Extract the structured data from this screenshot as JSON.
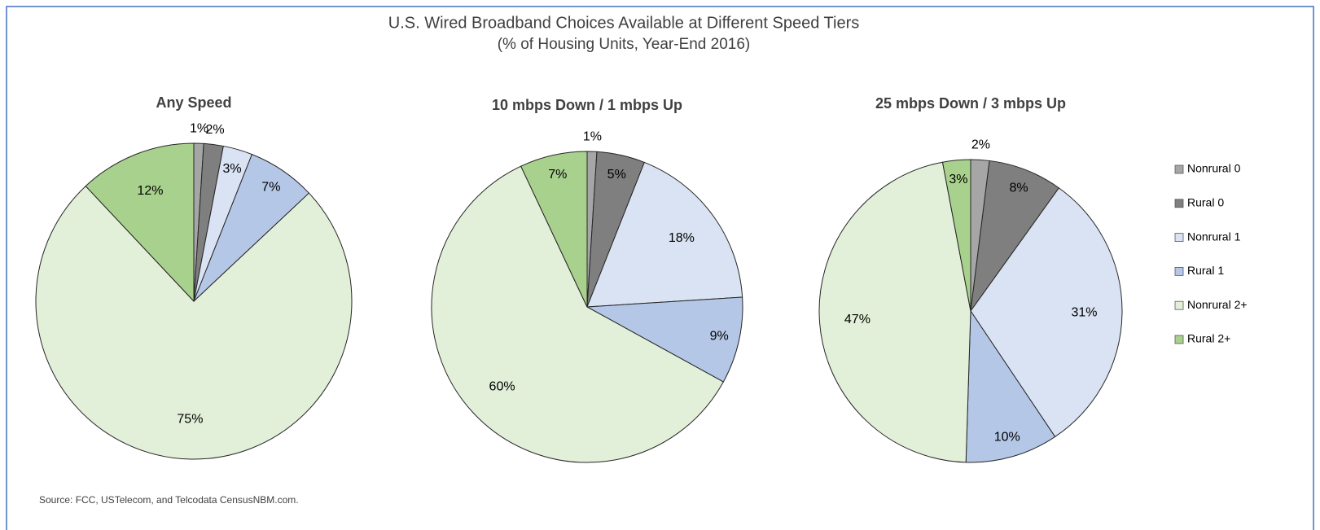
{
  "header": {
    "title": "U.S. Wired Broadband Choices Available at Different Speed Tiers",
    "subtitle": "(% of Housing Units, Year-End 2016)"
  },
  "source": "Source: FCC, USTelecom, and Telcodata CensusNBM.com.",
  "chart_data": [
    {
      "type": "pie",
      "title": "Any Speed",
      "categories": [
        "Nonrural 0",
        "Rural 0",
        "Nonrural 1",
        "Rural 1",
        "Nonrural 2+",
        "Rural 2+"
      ],
      "values": [
        1,
        2,
        3,
        7,
        75,
        12
      ],
      "value_labels": [
        "1%",
        "2%",
        "3%",
        "7%",
        "75%",
        "12%"
      ],
      "colors": [
        "#a6a6a6",
        "#7f7f7f",
        "#dae3f3",
        "#b4c7e7",
        "#e2f0d9",
        "#a9d18e"
      ]
    },
    {
      "type": "pie",
      "title": "10 mbps Down / 1 mbps Up",
      "categories": [
        "Nonrural 0",
        "Rural 0",
        "Nonrural 1",
        "Rural 1",
        "Nonrural 2+",
        "Rural 2+"
      ],
      "values": [
        1,
        5,
        18,
        9,
        60,
        7
      ],
      "value_labels": [
        "1%",
        "5%",
        "18%",
        "9%",
        "60%",
        "7%"
      ],
      "colors": [
        "#a6a6a6",
        "#7f7f7f",
        "#dae3f3",
        "#b4c7e7",
        "#e2f0d9",
        "#a9d18e"
      ]
    },
    {
      "type": "pie",
      "title": "25 mbps Down / 3 mbps Up",
      "categories": [
        "Nonrural 0",
        "Rural 0",
        "Nonrural 1",
        "Rural 1",
        "Nonrural 2+",
        "Rural 2+"
      ],
      "values": [
        2,
        8,
        31,
        10,
        47,
        3
      ],
      "value_labels": [
        "2%",
        "8%",
        "31%",
        "10%",
        "47%",
        "3%"
      ],
      "colors": [
        "#a6a6a6",
        "#7f7f7f",
        "#dae3f3",
        "#b4c7e7",
        "#e2f0d9",
        "#a9d18e"
      ]
    }
  ]
}
